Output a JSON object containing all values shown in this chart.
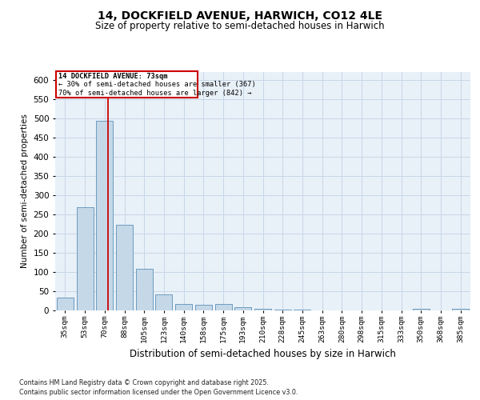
{
  "title_line1": "14, DOCKFIELD AVENUE, HARWICH, CO12 4LE",
  "title_line2": "Size of property relative to semi-detached houses in Harwich",
  "xlabel": "Distribution of semi-detached houses by size in Harwich",
  "ylabel": "Number of semi-detached properties",
  "categories": [
    "35sqm",
    "53sqm",
    "70sqm",
    "88sqm",
    "105sqm",
    "123sqm",
    "140sqm",
    "158sqm",
    "175sqm",
    "193sqm",
    "210sqm",
    "228sqm",
    "245sqm",
    "263sqm",
    "280sqm",
    "298sqm",
    "315sqm",
    "333sqm",
    "350sqm",
    "368sqm",
    "385sqm"
  ],
  "values": [
    33,
    267,
    493,
    222,
    108,
    40,
    15,
    13,
    15,
    7,
    3,
    1,
    1,
    0,
    0,
    0,
    0,
    0,
    3,
    0,
    4
  ],
  "bar_color": "#c5d8e8",
  "bar_edge_color": "#5a90b8",
  "grid_color": "#c8d8e8",
  "bg_color": "#e8f0f8",
  "vline_color": "#cc0000",
  "vline_pos": 2.18,
  "annotation_line1": "14 DOCKFIELD AVENUE: 73sqm",
  "annotation_line2": "← 30% of semi-detached houses are smaller (367)",
  "annotation_line3": "70% of semi-detached houses are larger (842) →",
  "annotation_box_color": "#cc0000",
  "footer_line1": "Contains HM Land Registry data © Crown copyright and database right 2025.",
  "footer_line2": "Contains public sector information licensed under the Open Government Licence v3.0.",
  "ylim": [
    0,
    620
  ],
  "yticks": [
    0,
    50,
    100,
    150,
    200,
    250,
    300,
    350,
    400,
    450,
    500,
    550,
    600
  ]
}
